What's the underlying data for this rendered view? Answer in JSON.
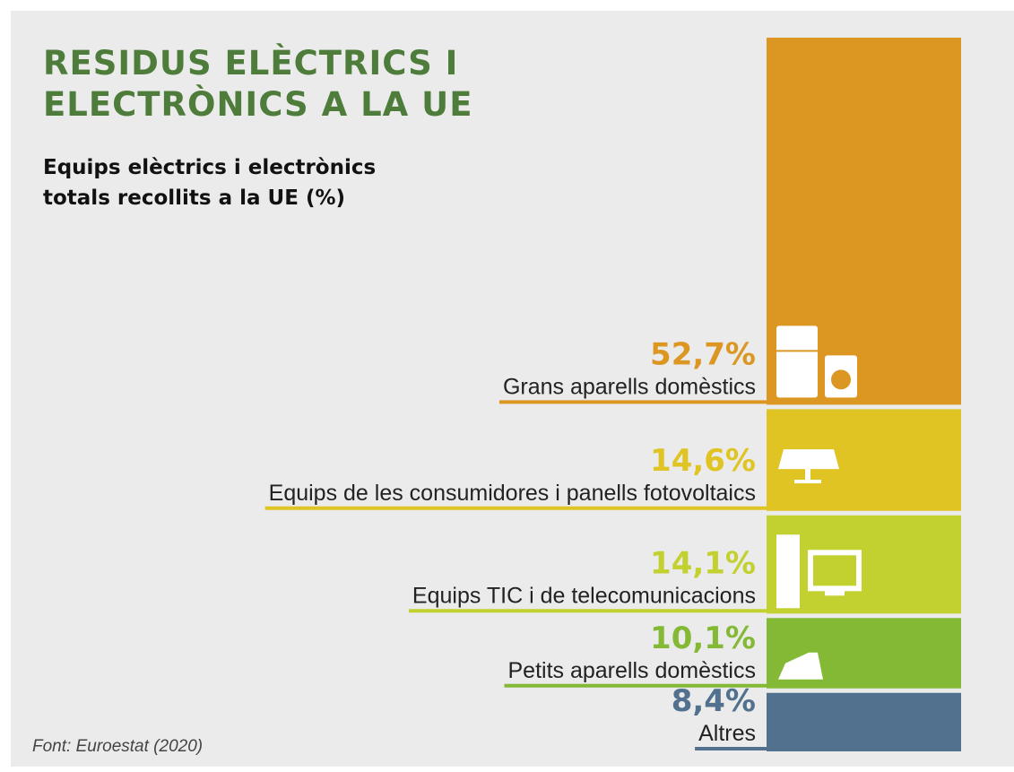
{
  "chart_data": {
    "type": "bar",
    "title": "RESIDUS ELÈCTRICS I ELECTRÒNICS A LA UE",
    "subtitle": "Equips elèctrics i electrònics totals recollits a la UE (%)",
    "source": "Font: Euroestat (2020)",
    "stacked": true,
    "categories": [
      "Grans aparells domèstics",
      "Equips de les consumidores i panells fotovoltaics",
      "Equips TIC i de telecomunicacions",
      "Petits aparells domèstics",
      "Altres"
    ],
    "values": [
      52.7,
      14.6,
      14.1,
      10.1,
      8.4
    ],
    "value_labels": [
      "52,7%",
      "14,6%",
      "14,1%",
      "10,1%",
      "8,4%"
    ],
    "colors": [
      "#dc9723",
      "#dfc423",
      "#c2d12f",
      "#83b935",
      "#51718e"
    ]
  }
}
